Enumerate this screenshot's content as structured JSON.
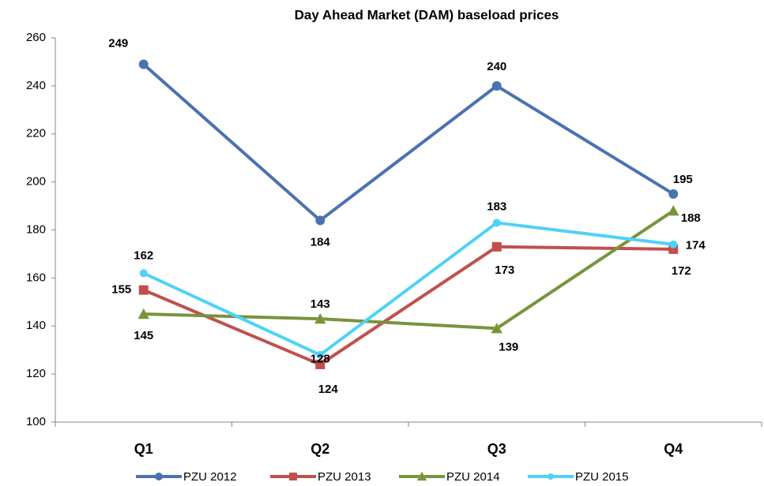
{
  "chart_data": {
    "type": "line",
    "title": "Day Ahead Market (DAM) baseload prices",
    "categories": [
      "Q1",
      "Q2",
      "Q3",
      "Q4"
    ],
    "series": [
      {
        "name": "PZU 2012",
        "color": "#4a72b0",
        "marker": "circle",
        "values": [
          249,
          184,
          240,
          195
        ]
      },
      {
        "name": "PZU 2013",
        "color": "#c0504d",
        "marker": "square",
        "values": [
          155,
          124,
          173,
          172
        ]
      },
      {
        "name": "PZU 2014",
        "color": "#77933c",
        "marker": "triangle",
        "values": [
          145,
          143,
          139,
          188
        ]
      },
      {
        "name": "PZU 2015",
        "color": "#4fd2f7",
        "marker": "circle",
        "values": [
          162,
          128,
          183,
          174
        ]
      }
    ],
    "ylim": [
      100,
      260
    ],
    "yticks": [
      100,
      120,
      140,
      160,
      180,
      200,
      220,
      240,
      260
    ],
    "grid": false,
    "legend": "bottom"
  }
}
